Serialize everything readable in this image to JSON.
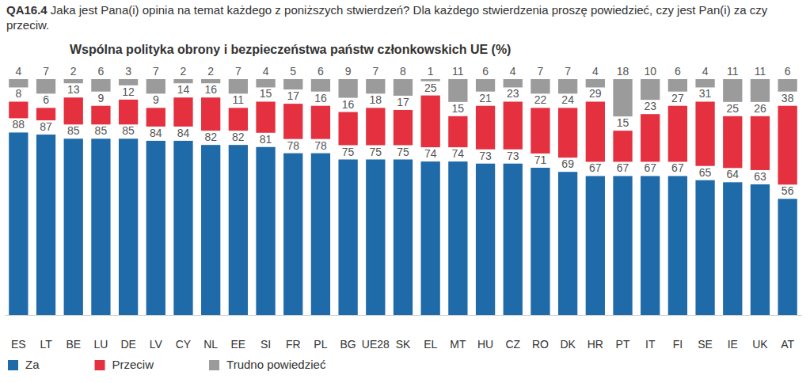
{
  "chart_data": {
    "type": "bar",
    "title": "QA16.4 Jaka jest Pana(i) opinia na temat każdego z poniższych stwierdzeń? Dla każdego stwierdzenia proszę powiedzieć, czy jest Pan(i) za czy przeciw.",
    "subtitle": "Wspólna polityka obrony i bezpieczeństwa państw członkowskich UE (%)",
    "categories": [
      "ES",
      "LT",
      "BE",
      "LU",
      "DE",
      "LV",
      "CY",
      "NL",
      "EE",
      "SI",
      "FR",
      "PL",
      "BG",
      "UE28",
      "SK",
      "EL",
      "MT",
      "HU",
      "CZ",
      "RO",
      "DK",
      "HR",
      "PT",
      "IT",
      "FI",
      "SE",
      "IE",
      "UK",
      "AT"
    ],
    "series": [
      {
        "name": "Za",
        "color": "#1f6aa9",
        "values": [
          88,
          87,
          85,
          85,
          85,
          84,
          84,
          82,
          82,
          81,
          78,
          78,
          75,
          75,
          75,
          74,
          74,
          73,
          73,
          71,
          69,
          67,
          67,
          67,
          67,
          65,
          64,
          63,
          56
        ]
      },
      {
        "name": "Przeciw",
        "color": "#e4303f",
        "values": [
          8,
          6,
          13,
          9,
          12,
          9,
          14,
          16,
          11,
          15,
          17,
          16,
          16,
          18,
          17,
          25,
          15,
          21,
          23,
          22,
          24,
          29,
          15,
          23,
          27,
          31,
          25,
          26,
          38
        ]
      },
      {
        "name": "Trudno powiedzieć",
        "color": "#9b9b9b",
        "values": [
          4,
          7,
          2,
          6,
          3,
          7,
          2,
          2,
          7,
          4,
          5,
          6,
          9,
          7,
          8,
          1,
          11,
          6,
          4,
          7,
          7,
          4,
          18,
          10,
          6,
          4,
          11,
          11,
          6
        ]
      }
    ],
    "ylim": [
      0,
      100
    ],
    "stacked": true,
    "data_labels": true,
    "tick_labels": "x",
    "legend": "lower left"
  }
}
